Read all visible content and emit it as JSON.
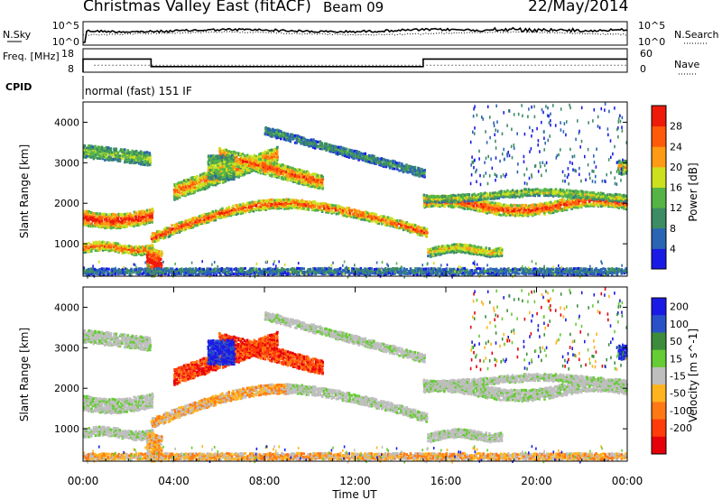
{
  "header": {
    "title": "Christmas Valley East (fitACF)",
    "beam": "Beam 09",
    "date": "22/May/2014"
  },
  "chart_data": [
    {
      "type": "line",
      "panel": "noise",
      "left_label": "N.Sky",
      "right_label": "N.Search",
      "left_ticks": [
        "10^5",
        "10^0"
      ],
      "right_ticks": [
        "10^5",
        "10^0"
      ],
      "xlim_hours": [
        0,
        24
      ]
    },
    {
      "type": "line",
      "panel": "frequency",
      "left_label": "Freq. [MHz]",
      "right_label": "Nave",
      "left_ticks": [
        18,
        8
      ],
      "right_ticks": [
        60,
        0
      ],
      "freq_steps": [
        {
          "from_h": 0,
          "to_h": 3,
          "mhz": 13.6
        },
        {
          "from_h": 3,
          "to_h": 15,
          "mhz": 10.4
        },
        {
          "from_h": 15,
          "to_h": 24,
          "mhz": 13.6
        }
      ],
      "nave_level": 18
    },
    {
      "type": "heatmap",
      "panel": "cpid",
      "label": "CPID",
      "mode_text": "normal (fast) 151 IF"
    },
    {
      "type": "heatmap",
      "panel": "power",
      "ylabel": "Slant Range [km]",
      "ylim": [
        200,
        4500
      ],
      "yticks": [
        1000,
        2000,
        3000,
        4000
      ],
      "colorbar_label": "Power [dB]",
      "colorbar_ticks": [
        4,
        8,
        12,
        16,
        20,
        24,
        28
      ],
      "colorbar_range": [
        0,
        32
      ],
      "colors": [
        "#1a1ae6",
        "#2a64b4",
        "#3c8c64",
        "#56b446",
        "#cce01e",
        "#ff9a14",
        "#ff5a0a",
        "#ee1a0a"
      ]
    },
    {
      "type": "heatmap",
      "panel": "velocity",
      "ylabel": "Slant Range [km]",
      "ylim": [
        200,
        4500
      ],
      "yticks": [
        1000,
        2000,
        3000,
        4000
      ],
      "colorbar_label": "Velocity [m s^-1]",
      "colorbar_ticks": [
        "200",
        "100",
        "50",
        "15",
        "-15",
        "-50",
        "-100",
        "-200"
      ],
      "colors": [
        "#1a1ae6",
        "#2a52c8",
        "#3c8c3c",
        "#66cc33",
        "#bebebe",
        "#ffb41e",
        "#ff7814",
        "#ff3c0a",
        "#e6000a"
      ],
      "xlabel": "Time UT",
      "xticks": [
        "00:00",
        "04:00",
        "08:00",
        "12:00",
        "16:00",
        "20:00",
        "00:00"
      ]
    }
  ]
}
